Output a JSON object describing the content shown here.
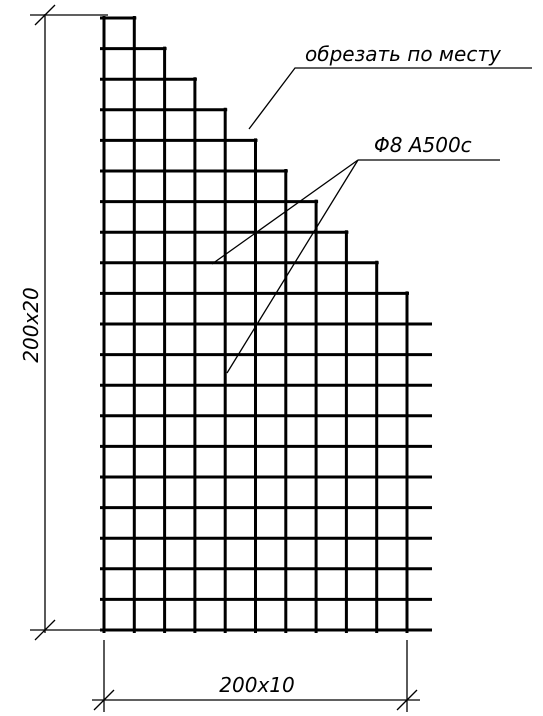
{
  "labels": {
    "cut_note": "обрезать по месту",
    "bar_spec": "Φ8 А500с",
    "vertical_dim": "200x20",
    "horizontal_dim": "200x10"
  },
  "mesh": {
    "horizontal_bar_count": 21,
    "vertical_bar_count": 11
  }
}
